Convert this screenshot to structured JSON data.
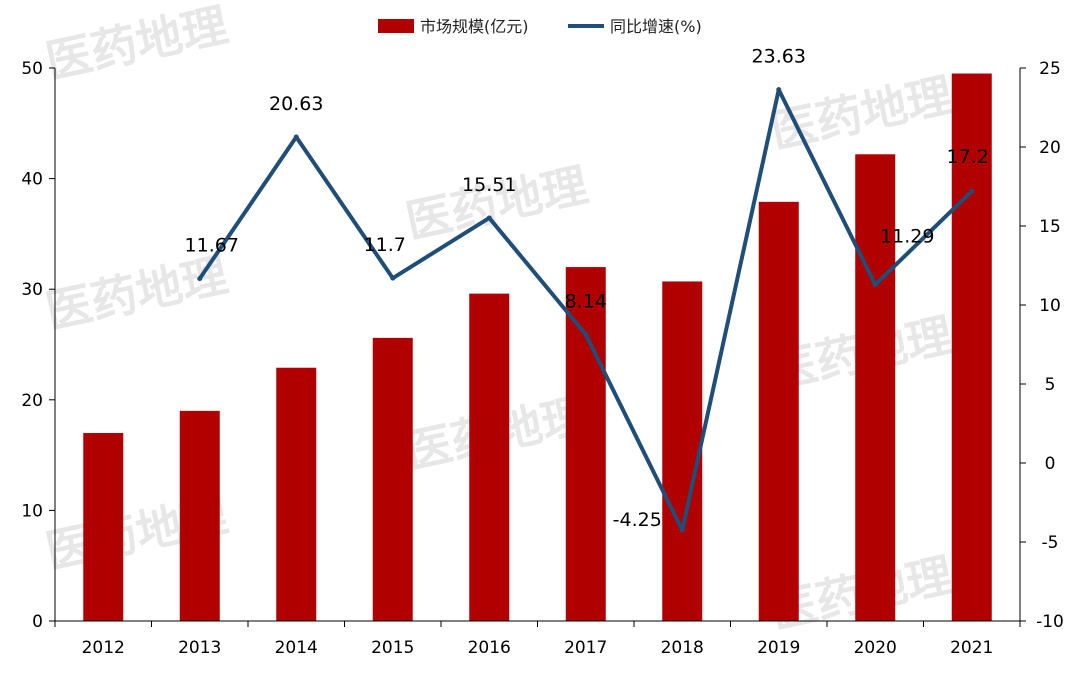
{
  "legend": {
    "bar_label": "市场规模(亿元)",
    "line_label": "同比增速(%)"
  },
  "watermark": "医药地理",
  "colors": {
    "bar": "#b00000",
    "line": "#1f4e79",
    "axis": "#000000"
  },
  "chart_data": {
    "type": "bar",
    "categories": [
      "2012",
      "2013",
      "2014",
      "2015",
      "2016",
      "2017",
      "2018",
      "2019",
      "2020",
      "2021"
    ],
    "series": [
      {
        "name": "市场规模(亿元)",
        "type": "bar",
        "axis": "left",
        "values": [
          17.0,
          19.0,
          22.9,
          25.6,
          29.6,
          32.0,
          30.7,
          37.9,
          42.2,
          49.5
        ]
      },
      {
        "name": "同比增速(%)",
        "type": "line",
        "axis": "right",
        "values": [
          null,
          11.67,
          20.63,
          11.7,
          15.51,
          8.14,
          -4.25,
          23.63,
          11.29,
          17.2
        ],
        "labels": [
          "",
          "11.67",
          "20.63",
          "11.7",
          "15.51",
          "8.14",
          "-4.25",
          "23.63",
          "11.29",
          "17.2"
        ]
      }
    ],
    "y_left": {
      "lim": [
        0,
        50
      ],
      "ticks": [
        "0",
        "10",
        "20",
        "30",
        "40",
        "50"
      ]
    },
    "y_right": {
      "lim": [
        -10,
        25
      ],
      "ticks": [
        "-10",
        "-5",
        "0",
        "5",
        "10",
        "15",
        "20",
        "25"
      ]
    },
    "grid": false,
    "legend_position": "top-center"
  }
}
